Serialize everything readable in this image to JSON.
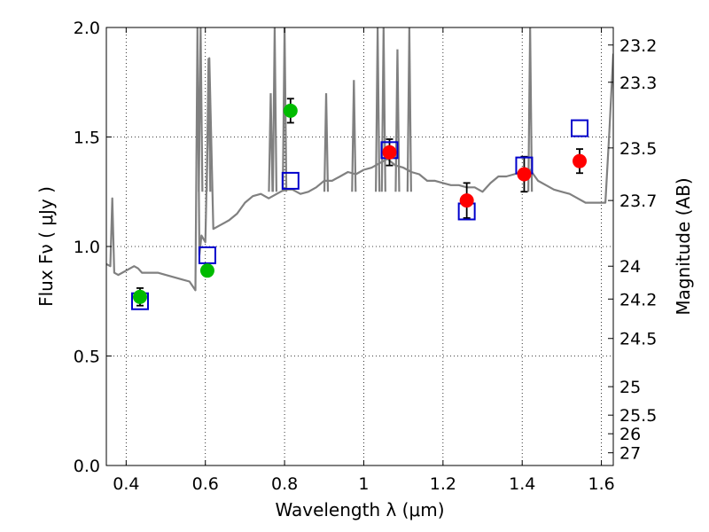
{
  "chart_data": {
    "type": "scatter",
    "xlabel": "Wavelength  λ (μm)",
    "ylabel": "Flux  Fν  ( μJy )",
    "y2label": "Magnitude (AB)",
    "xlim": [
      0.35,
      1.63
    ],
    "ylim": [
      0.0,
      2.0
    ],
    "xticks": [
      0.4,
      0.6,
      0.8,
      1.0,
      1.2,
      1.4,
      1.6
    ],
    "xtick_labels": [
      "0.4",
      "0.6",
      "0.8",
      "1",
      "1.2",
      "1.4",
      "1.6"
    ],
    "yticks": [
      0.0,
      0.5,
      1.0,
      1.5,
      2.0
    ],
    "ytick_labels": [
      "0.0",
      "0.5",
      "1.0",
      "1.5",
      "2.0"
    ],
    "y2_ticks": [
      {
        "label": "23.2",
        "flux": 1.92
      },
      {
        "label": "23.3",
        "flux": 1.75
      },
      {
        "label": "23.5",
        "flux": 1.45
      },
      {
        "label": "23.7",
        "flux": 1.21
      },
      {
        "label": "24",
        "flux": 0.91
      },
      {
        "label": "24.2",
        "flux": 0.76
      },
      {
        "label": "24.5",
        "flux": 0.58
      },
      {
        "label": "25",
        "flux": 0.36
      },
      {
        "label": "25.5",
        "flux": 0.23
      },
      {
        "label": "26",
        "flux": 0.145
      },
      {
        "label": "27",
        "flux": 0.058
      }
    ],
    "grid": true,
    "colors": {
      "template": "#808080",
      "green": "#00bb00",
      "red": "#ff0000",
      "model_box": "#0000cc",
      "errorbar": "#000000"
    },
    "series": [
      {
        "kind": "line",
        "x": [
          0.35,
          0.36,
          0.365,
          0.37,
          0.38,
          0.4,
          0.42,
          0.43,
          0.44,
          0.46,
          0.48,
          0.5,
          0.52,
          0.54,
          0.56,
          0.575,
          0.58,
          0.585,
          0.59,
          0.6,
          0.61,
          0.62,
          0.64,
          0.66,
          0.68,
          0.7,
          0.72,
          0.74,
          0.76,
          0.78,
          0.8,
          0.82,
          0.84,
          0.86,
          0.88,
          0.9,
          0.92,
          0.94,
          0.96,
          0.98,
          1.0,
          1.02,
          1.04,
          1.06,
          1.08,
          1.1,
          1.12,
          1.14,
          1.16,
          1.18,
          1.2,
          1.22,
          1.24,
          1.26,
          1.28,
          1.3,
          1.32,
          1.34,
          1.36,
          1.38,
          1.4,
          1.42,
          1.44,
          1.46,
          1.48,
          1.5,
          1.52,
          1.54,
          1.56,
          1.58,
          1.6,
          1.61,
          1.62,
          1.63
        ],
        "y": [
          0.92,
          0.91,
          1.22,
          0.88,
          0.87,
          0.89,
          0.91,
          0.9,
          0.88,
          0.88,
          0.88,
          0.87,
          0.86,
          0.85,
          0.84,
          0.8,
          2.0,
          0.96,
          1.05,
          1.02,
          1.86,
          1.08,
          1.1,
          1.12,
          1.15,
          1.2,
          1.23,
          1.24,
          1.22,
          1.24,
          1.26,
          1.26,
          1.24,
          1.25,
          1.27,
          1.3,
          1.3,
          1.32,
          1.34,
          1.33,
          1.35,
          1.36,
          1.38,
          1.4,
          1.37,
          1.36,
          1.34,
          1.33,
          1.3,
          1.3,
          1.29,
          1.28,
          1.28,
          1.27,
          1.27,
          1.25,
          1.29,
          1.32,
          1.32,
          1.33,
          1.34,
          1.35,
          1.3,
          1.28,
          1.26,
          1.25,
          1.24,
          1.22,
          1.2,
          1.2,
          1.2,
          1.2,
          1.52,
          1.88
        ]
      },
      {
        "kind": "spikes",
        "x": [
          0.588,
          0.608,
          0.765,
          0.775,
          0.8,
          0.905,
          0.975,
          1.035,
          1.05,
          1.085,
          1.115,
          1.42
        ],
        "y": [
          2.0,
          1.86,
          1.7,
          2.0,
          2.0,
          1.7,
          1.76,
          2.0,
          2.0,
          1.9,
          2.0,
          2.0
        ]
      },
      {
        "kind": "points",
        "color": "green",
        "x": [
          0.435,
          0.605,
          0.815
        ],
        "y": [
          0.77,
          0.89,
          1.62
        ],
        "err": [
          0.04,
          0.0,
          0.055
        ]
      },
      {
        "kind": "points",
        "color": "red",
        "x": [
          1.065,
          1.26,
          1.405,
          1.545
        ],
        "y": [
          1.43,
          1.21,
          1.33,
          1.39
        ],
        "err": [
          0.06,
          0.08,
          0.08,
          0.055
        ]
      },
      {
        "kind": "boxes",
        "color": "model_box",
        "x": [
          0.435,
          0.605,
          0.815,
          1.065,
          1.26,
          1.405,
          1.545
        ],
        "y": [
          0.75,
          0.96,
          1.3,
          1.44,
          1.16,
          1.37,
          1.54
        ]
      }
    ]
  }
}
